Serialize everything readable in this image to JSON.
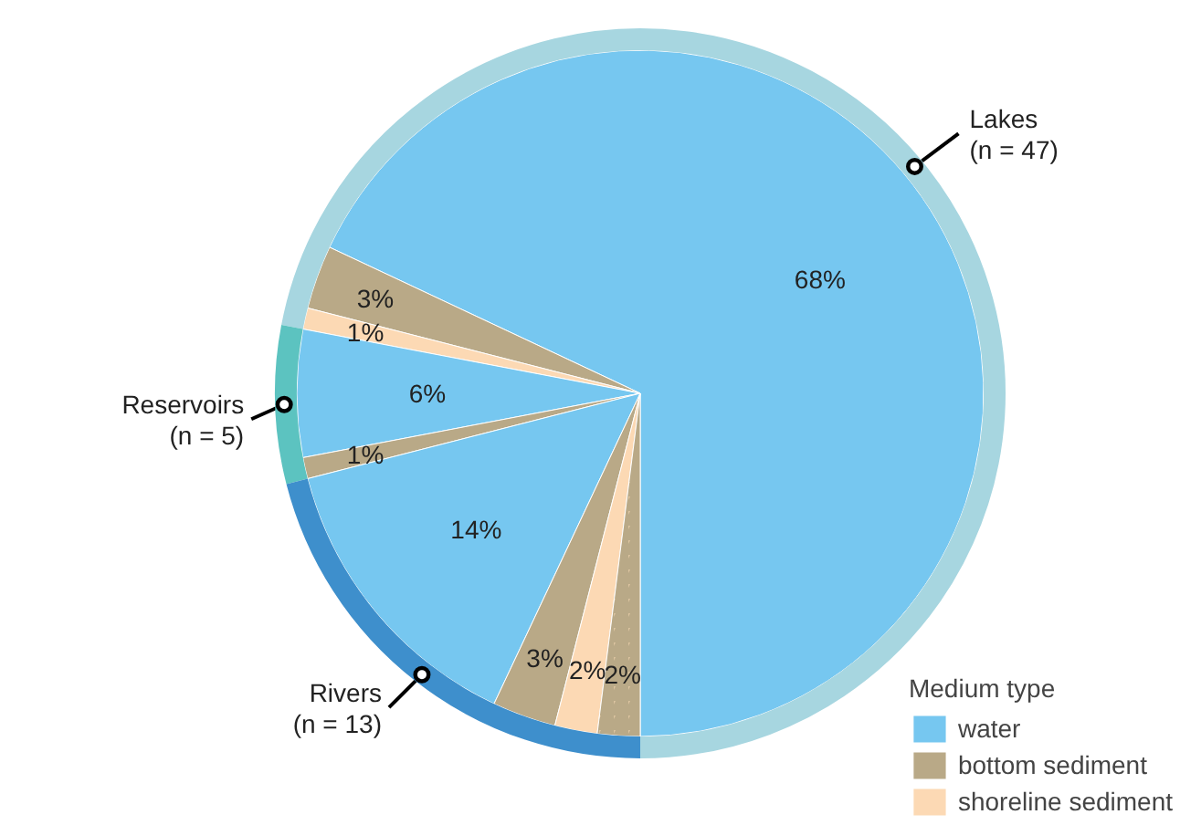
{
  "chart_data": {
    "type": "pie",
    "legend_title": "Medium type",
    "legend": "bottom right",
    "data_labels": true,
    "categories": [
      "water",
      "bottom sediment",
      "shoreline sediment",
      null,
      null,
      null,
      null,
      null,
      null
    ],
    "values": [
      68,
      3,
      1,
      6,
      1,
      14,
      3,
      2,
      2
    ],
    "value_labels": [
      "68%",
      "3%",
      "1%",
      "6%",
      "1%",
      "14%",
      "3%",
      "2%",
      "2%"
    ],
    "colors": [
      "#76c7f0",
      "#b9a987",
      "#fcd9b4",
      "#76c7f0",
      "#b9a987",
      "#76c7f0",
      "#b9a987",
      "#fcd9b4",
      "#dcc4a0"
    ],
    "annotations": [
      "Lakes\n(n = 47)",
      "Reservoirs\n(n = 5)",
      "Rivers\n(n = 13)"
    ]
  }
}
